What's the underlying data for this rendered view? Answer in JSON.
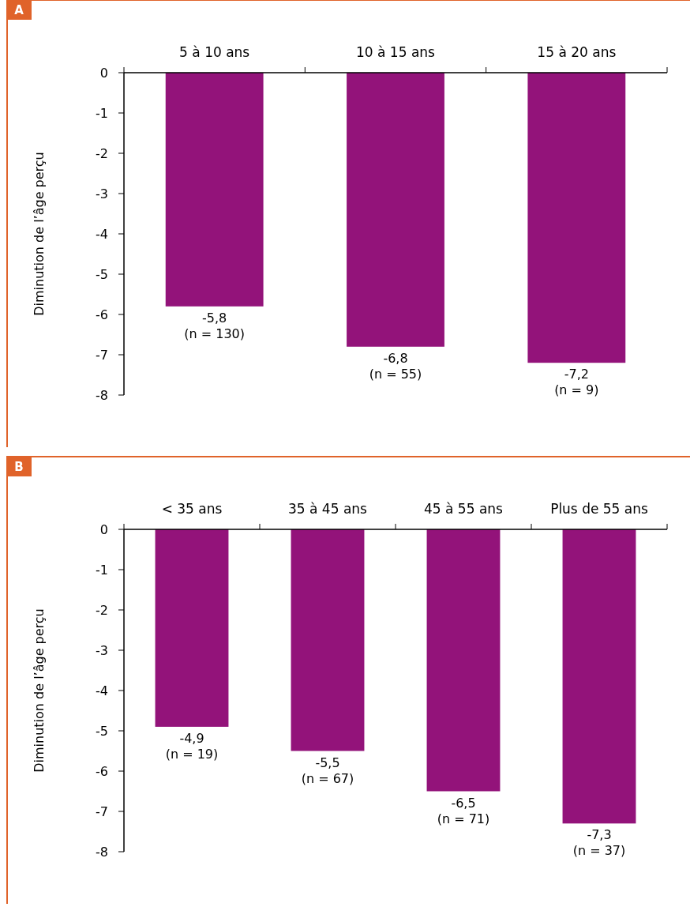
{
  "chart_data": [
    {
      "type": "bar",
      "annotations": [
        "A"
      ],
      "ylabel": "Diminution de l’âge perçu",
      "categories": [
        "5 à 10 ans",
        "10 à 15 ans",
        "15 à 20 ans"
      ],
      "values": [
        -5.8,
        -6.8,
        -7.2
      ],
      "color": "#93137a",
      "value_labels": [
        "-5,8\n(n = 130)",
        "-6,8\n(n = 55)",
        "-7,2\n(n = 9)"
      ],
      "ylim": [
        -8,
        0
      ],
      "yticks": [
        {
          "value": 0,
          "label": "0"
        },
        -1,
        -2,
        -3,
        -4,
        -5,
        -6,
        -7,
        -8
      ],
      "grid": false
    },
    {
      "type": "bar",
      "annotations": [
        "B"
      ],
      "ylabel": "Diminution de l’âge perçu",
      "categories": [
        "< 35 ans",
        "35 à 45 ans",
        "45 à 55 ans",
        "Plus de 55 ans"
      ],
      "values": [
        -4.9,
        -5.5,
        -6.5,
        -7.3
      ],
      "color": "#93137a",
      "value_labels": [
        "-4,9\n(n = 19)",
        "-5,5\n(n = 67)",
        "-6,5\n(n = 71)",
        "-7,3\n(n = 37)"
      ],
      "ylim": [
        -8,
        0
      ],
      "yticks": [
        {
          "value": 0,
          "label": "0"
        },
        -1,
        -2,
        -3,
        -4,
        -5,
        -6,
        -7,
        -8
      ],
      "grid": false
    }
  ]
}
